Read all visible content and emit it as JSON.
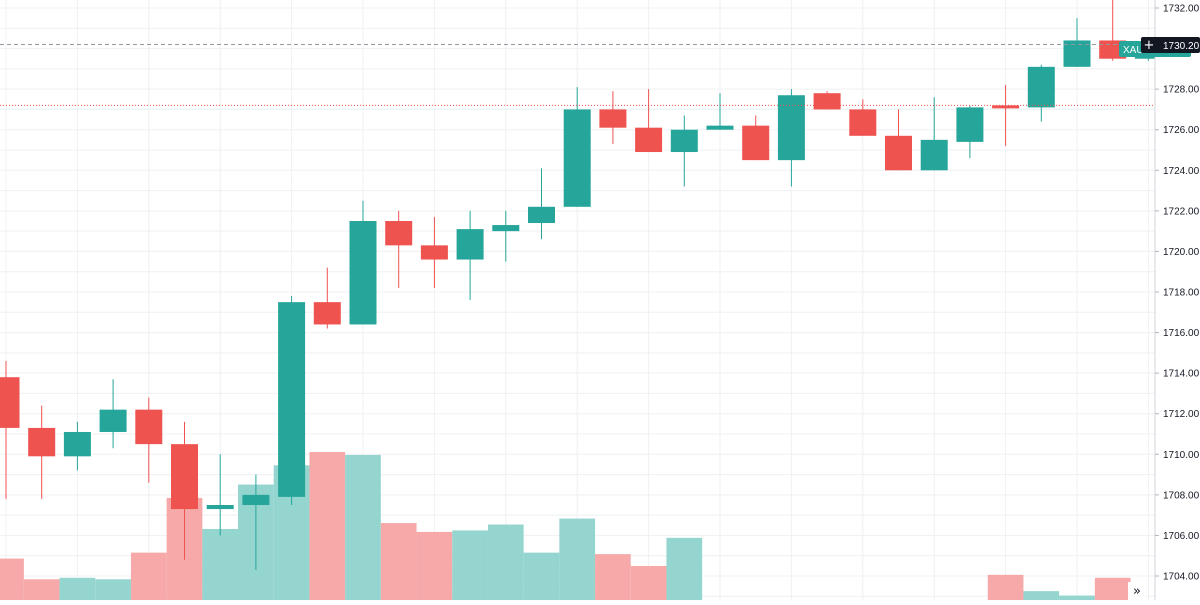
{
  "symbol": "XAUUSD",
  "last_price_label": "1730.20",
  "scroll_icon": "double-chevron-right-icon",
  "colors": {
    "up": "#26a69a",
    "down": "#ef5350",
    "up_volume": "#94d5cf",
    "down_volume": "#f6a9a8",
    "grid": "#eef0f3",
    "axis_text": "#131722",
    "price_line": "#ef5350",
    "crosshair": "#9598a1",
    "last_price_bg": "#26a69a"
  },
  "chart_data": {
    "type": "candlestick",
    "y_axis": {
      "ticks": [
        1704,
        1706,
        1708,
        1710,
        1712,
        1714,
        1716,
        1718,
        1720,
        1722,
        1724,
        1726,
        1728,
        1730,
        1732
      ],
      "tick_labels": [
        "1704.00",
        "1706.00",
        "1708.00",
        "1710.00",
        "1712.00",
        "1714.00",
        "1716.00",
        "1718.00",
        "1720.00",
        "1722.00",
        "1724.00",
        "1726.00",
        "1728.00",
        "1730.00",
        "1732.00"
      ],
      "range": [
        1703.0,
        1732.6
      ],
      "position": "right"
    },
    "grid": true,
    "horizontal_price_line": 1727.2,
    "crosshair_price": 1730.2,
    "candles": [
      {
        "o": 1713.8,
        "h": 1714.6,
        "l": 1707.8,
        "c": 1711.3
      },
      {
        "o": 1711.3,
        "h": 1712.4,
        "l": 1707.8,
        "c": 1709.9
      },
      {
        "o": 1709.9,
        "h": 1711.6,
        "l": 1709.2,
        "c": 1711.1
      },
      {
        "o": 1711.1,
        "h": 1713.7,
        "l": 1710.3,
        "c": 1712.2
      },
      {
        "o": 1712.2,
        "h": 1712.8,
        "l": 1708.6,
        "c": 1710.5
      },
      {
        "o": 1710.5,
        "h": 1711.6,
        "l": 1704.8,
        "c": 1707.3
      },
      {
        "o": 1707.3,
        "h": 1710.0,
        "l": 1706.0,
        "c": 1707.5
      },
      {
        "o": 1707.5,
        "h": 1709.0,
        "l": 1704.3,
        "c": 1708.0
      },
      {
        "o": 1707.9,
        "h": 1717.8,
        "l": 1707.5,
        "c": 1717.5
      },
      {
        "o": 1717.5,
        "h": 1719.2,
        "l": 1716.2,
        "c": 1716.4
      },
      {
        "o": 1716.4,
        "h": 1722.5,
        "l": 1716.4,
        "c": 1721.5
      },
      {
        "o": 1721.5,
        "h": 1722.0,
        "l": 1718.2,
        "c": 1720.3
      },
      {
        "o": 1720.3,
        "h": 1721.7,
        "l": 1718.2,
        "c": 1719.6
      },
      {
        "o": 1719.6,
        "h": 1722.0,
        "l": 1717.6,
        "c": 1721.1
      },
      {
        "o": 1721.0,
        "h": 1722.0,
        "l": 1719.5,
        "c": 1721.3
      },
      {
        "o": 1721.4,
        "h": 1724.1,
        "l": 1720.6,
        "c": 1722.2
      },
      {
        "o": 1722.2,
        "h": 1728.1,
        "l": 1722.2,
        "c": 1727.0
      },
      {
        "o": 1727.0,
        "h": 1727.9,
        "l": 1725.3,
        "c": 1726.1
      },
      {
        "o": 1726.1,
        "h": 1728.0,
        "l": 1724.9,
        "c": 1724.9
      },
      {
        "o": 1724.9,
        "h": 1726.7,
        "l": 1723.2,
        "c": 1726.0
      },
      {
        "o": 1726.0,
        "h": 1727.8,
        "l": 1726.0,
        "c": 1726.2
      },
      {
        "o": 1726.2,
        "h": 1726.7,
        "l": 1724.5,
        "c": 1724.5
      },
      {
        "o": 1724.5,
        "h": 1728.0,
        "l": 1723.2,
        "c": 1727.7
      },
      {
        "o": 1727.8,
        "h": 1727.9,
        "l": 1727.0,
        "c": 1727.0
      },
      {
        "o": 1727.0,
        "h": 1727.5,
        "l": 1725.7,
        "c": 1725.7
      },
      {
        "o": 1725.7,
        "h": 1727.0,
        "l": 1724.0,
        "c": 1724.0
      },
      {
        "o": 1724.0,
        "h": 1727.6,
        "l": 1724.0,
        "c": 1725.5
      },
      {
        "o": 1725.4,
        "h": 1727.2,
        "l": 1724.6,
        "c": 1727.1
      },
      {
        "o": 1727.2,
        "h": 1728.2,
        "l": 1725.2,
        "c": 1727.1
      },
      {
        "o": 1727.1,
        "h": 1729.2,
        "l": 1726.4,
        "c": 1729.1
      },
      {
        "o": 1729.1,
        "h": 1731.5,
        "l": 1729.1,
        "c": 1730.4
      },
      {
        "o": 1730.4,
        "h": 1732.5,
        "l": 1729.4,
        "c": 1729.5
      },
      {
        "o": 1729.5,
        "h": 1730.3,
        "l": 1729.4,
        "c": 1730.2
      }
    ],
    "volume": [
      {
        "v": 0.28,
        "dir": "down"
      },
      {
        "v": 0.14,
        "dir": "down"
      },
      {
        "v": 0.15,
        "dir": "up"
      },
      {
        "v": 0.14,
        "dir": "up"
      },
      {
        "v": 0.32,
        "dir": "down"
      },
      {
        "v": 0.69,
        "dir": "down"
      },
      {
        "v": 0.48,
        "dir": "up"
      },
      {
        "v": 0.78,
        "dir": "up"
      },
      {
        "v": 0.91,
        "dir": "up"
      },
      {
        "v": 1.0,
        "dir": "down"
      },
      {
        "v": 0.98,
        "dir": "up"
      },
      {
        "v": 0.52,
        "dir": "down"
      },
      {
        "v": 0.46,
        "dir": "down"
      },
      {
        "v": 0.47,
        "dir": "up"
      },
      {
        "v": 0.51,
        "dir": "up"
      },
      {
        "v": 0.32,
        "dir": "up"
      },
      {
        "v": 0.55,
        "dir": "up"
      },
      {
        "v": 0.31,
        "dir": "down"
      },
      {
        "v": 0.23,
        "dir": "down"
      },
      {
        "v": 0.42,
        "dir": "up"
      },
      {
        "v": 0.0,
        "dir": "up"
      },
      {
        "v": 0.0,
        "dir": "down"
      },
      {
        "v": 0.0,
        "dir": "up"
      },
      {
        "v": 0.0,
        "dir": "down"
      },
      {
        "v": 0.0,
        "dir": "down"
      },
      {
        "v": 0.0,
        "dir": "down"
      },
      {
        "v": 0.0,
        "dir": "up"
      },
      {
        "v": 0.0,
        "dir": "up"
      },
      {
        "v": 0.17,
        "dir": "down"
      },
      {
        "v": 0.06,
        "dir": "up"
      },
      {
        "v": 0.03,
        "dir": "up"
      },
      {
        "v": 0.15,
        "dir": "down"
      },
      {
        "v": 0.0,
        "dir": "up"
      }
    ]
  }
}
